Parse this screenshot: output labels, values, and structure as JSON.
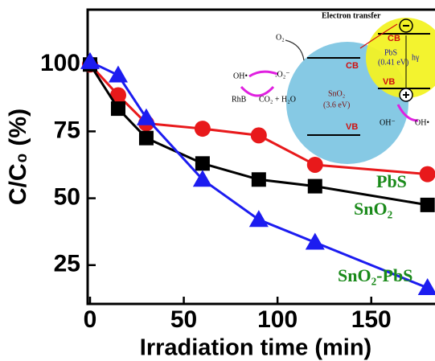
{
  "chart_data": {
    "type": "line",
    "x_label": "Irradiation time (min)",
    "y_label": "C/C₀ (%)",
    "x": [
      0,
      15,
      30,
      60,
      90,
      120,
      180
    ],
    "series": [
      {
        "name": "PbS",
        "color": "#e8191b",
        "marker": "circle",
        "values": [
          100,
          88.5,
          78,
          76,
          73.5,
          62.5,
          59
        ]
      },
      {
        "name": "SnO₂",
        "color": "#000000",
        "marker": "square",
        "values": [
          100,
          83.5,
          72.5,
          63,
          57,
          54.5,
          47.5
        ]
      },
      {
        "name": "SnO₂-PbS",
        "color": "#1c1cf0",
        "marker": "triangle",
        "values": [
          101,
          96,
          80,
          57,
          42,
          33.5,
          16.5
        ]
      }
    ],
    "legend_color": "#1a8a1a",
    "xlim": [
      0,
      184
    ],
    "xticks": [
      0,
      50,
      100,
      150
    ],
    "ylim": [
      10.5,
      120.5
    ],
    "yticks": [
      25,
      50,
      75,
      100
    ]
  },
  "inset": {
    "electron_transfer": "Electron transfer",
    "pbs_cb": "CB",
    "pbs": "PbS",
    "pbs_gap": "(0.41 eV)",
    "hv": "hγ",
    "pbs_vb": "VB",
    "o2": "O₂",
    "sno2_cb": "CB",
    "superoxide": ".O₂⁻",
    "oh_rad_left": "OH•",
    "sno2": "SnO₂",
    "sno2_gap": "(3.6 eV)",
    "rhb": "RhB",
    "products": "CO₂ + H₂O",
    "sno2_vb": "VB",
    "oh_minus": "OH⁻",
    "oh_rad_right": "OH•"
  }
}
